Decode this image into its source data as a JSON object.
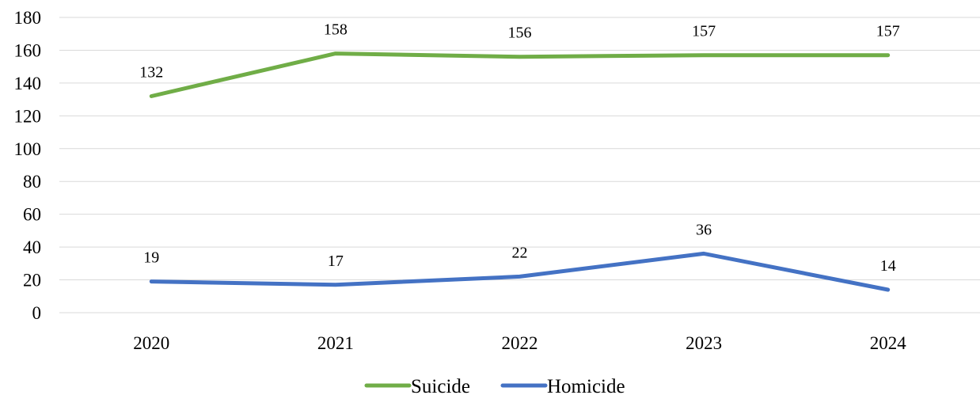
{
  "chart_data": {
    "type": "line",
    "title": "",
    "xlabel": "",
    "ylabel": "",
    "categories": [
      "2020",
      "2021",
      "2022",
      "2023",
      "2024"
    ],
    "ylim": [
      0,
      180
    ],
    "yticks": [
      "0",
      "20",
      "40",
      "60",
      "80",
      "100",
      "120",
      "140",
      "160",
      "180"
    ],
    "grid": true,
    "legend_position": "bottom",
    "series": [
      {
        "name": "Suicide",
        "color": "#70ad47",
        "values": [
          132,
          158,
          156,
          157,
          157
        ]
      },
      {
        "name": "Homicide",
        "color": "#4472c4",
        "values": [
          19,
          17,
          22,
          36,
          14
        ]
      }
    ]
  }
}
